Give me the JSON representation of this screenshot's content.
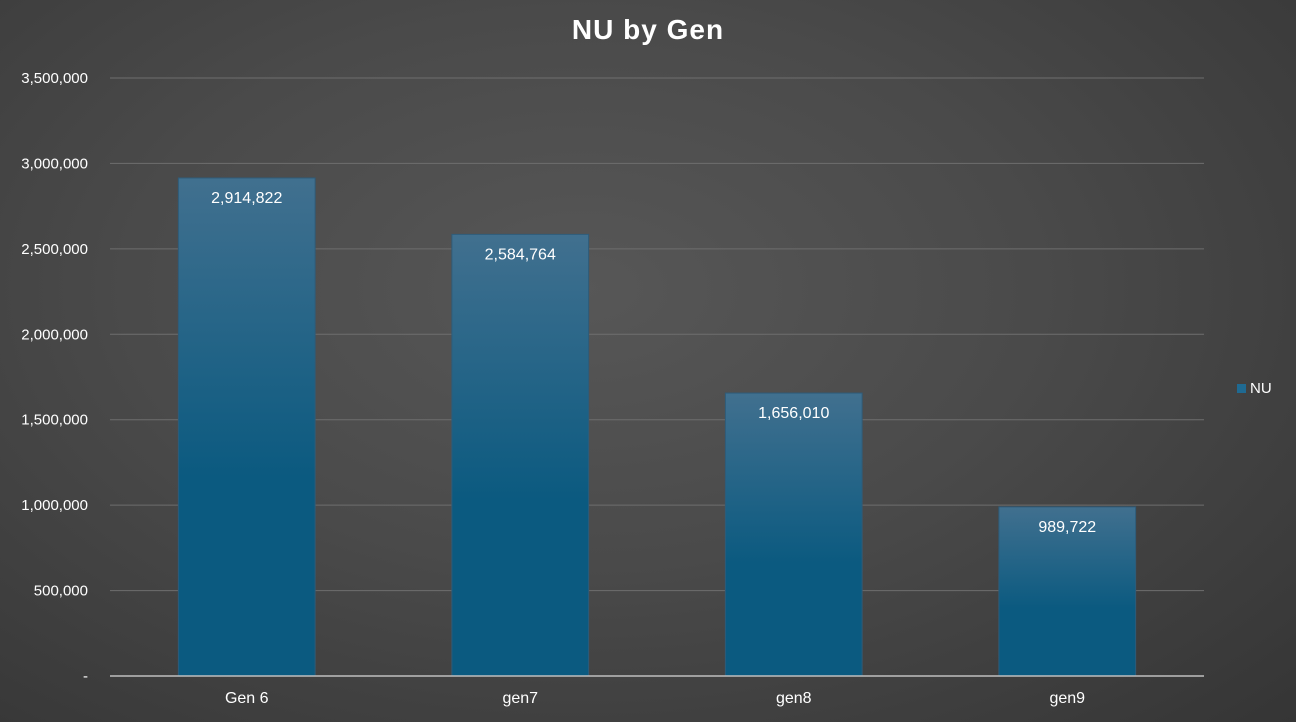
{
  "chart_data": {
    "type": "bar",
    "title": "NU by Gen",
    "categories": [
      "Gen 6",
      "gen7",
      "gen8",
      "gen9"
    ],
    "series": [
      {
        "name": "NU",
        "values": [
          2914822,
          2584764,
          1656010,
          989722
        ],
        "labels": [
          "2,914,822",
          "2,584,764",
          "1,656,010",
          "989,722"
        ]
      }
    ],
    "ylim": [
      0,
      3500000
    ],
    "yticks": [
      0,
      500000,
      1000000,
      1500000,
      2000000,
      2500000,
      3000000,
      3500000
    ],
    "ytick_labels": [
      "-",
      "500,000",
      "1,000,000",
      "1,500,000",
      "2,000,000",
      "2,500,000",
      "3,000,000",
      "3,500,000"
    ],
    "grid": true,
    "legend_position": "right",
    "colors": {
      "bar_top": "#41708f",
      "bar_bottom": "#0b5a80",
      "gridline": "#6e6e6e",
      "axis": "#bfbfbf",
      "legend_swatch": "#1f6a92"
    }
  }
}
